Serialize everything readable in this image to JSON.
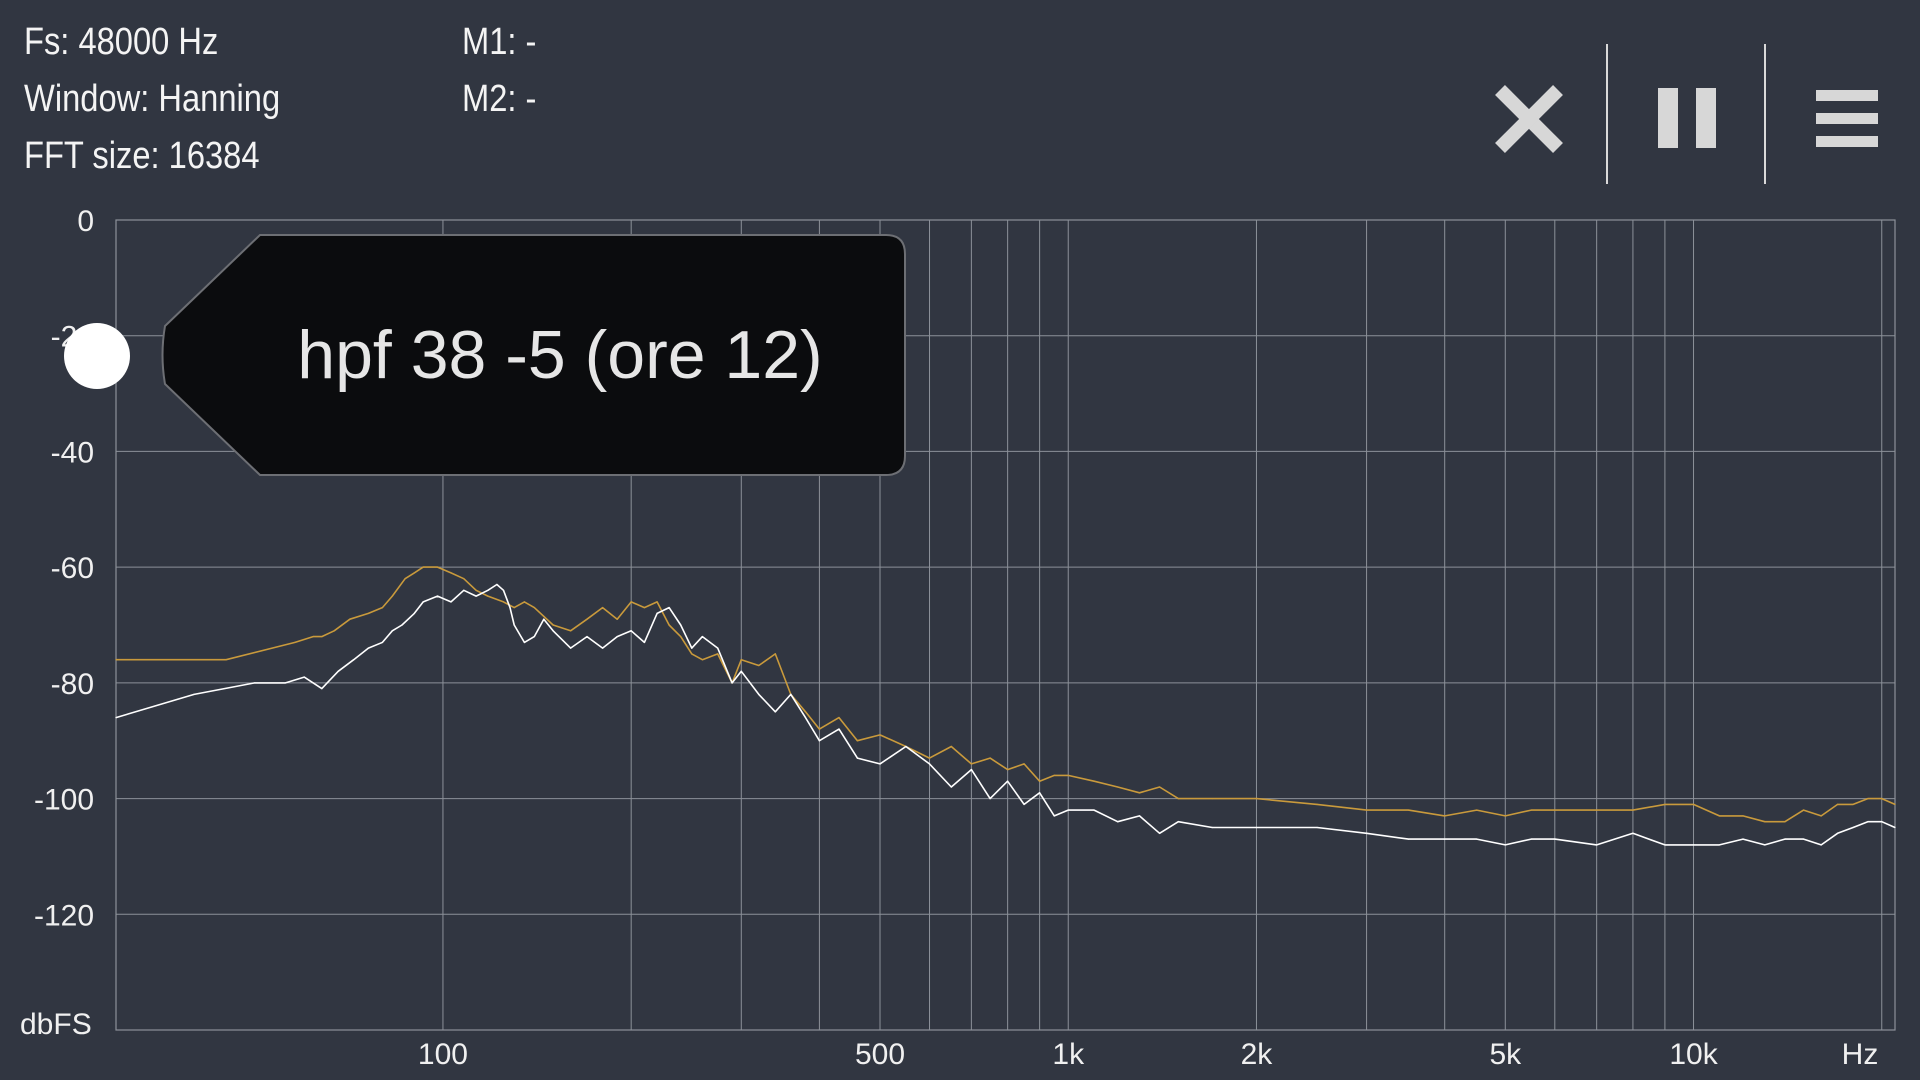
{
  "info": {
    "fs": "Fs: 48000 Hz",
    "window": "Window: Hanning",
    "fft_size": "FFT size: 16384",
    "m1": "M1: -",
    "m2": "M2: -"
  },
  "toolbar": {
    "close_icon": "close-icon",
    "pause_icon": "pause-icon",
    "menu_icon": "menu-icon"
  },
  "tooltip": {
    "label": "hpf 38 -5 (ore 12)"
  },
  "colors": {
    "background": "#313641",
    "grid": "#8c9199",
    "trace_current": "#ffffff",
    "trace_peak": "#c99a3c",
    "tooltip_bg": "#0b0c0e"
  },
  "chart_data": {
    "type": "line",
    "xlabel": "Hz",
    "ylabel": "dbFS",
    "x_scale": "log",
    "xlim": [
      30,
      21000
    ],
    "ylim": [
      -140,
      0
    ],
    "x_ticks": [
      {
        "value": 100,
        "label": "100"
      },
      {
        "value": 500,
        "label": "500"
      },
      {
        "value": 1000,
        "label": "1k"
      },
      {
        "value": 2000,
        "label": "2k"
      },
      {
        "value": 5000,
        "label": "5k"
      },
      {
        "value": 10000,
        "label": "10k"
      }
    ],
    "x_unit_label": "Hz",
    "y_ticks": [
      0,
      -20,
      -40,
      -60,
      -80,
      -100,
      -120
    ],
    "x_grid": [
      100,
      200,
      300,
      400,
      500,
      600,
      700,
      800,
      900,
      1000,
      2000,
      3000,
      4000,
      5000,
      6000,
      7000,
      8000,
      9000,
      10000,
      20000
    ],
    "grid": true,
    "series": [
      {
        "color": "#c99a3c",
        "x": [
          30,
          45,
          58,
          62,
          64,
          67,
          71,
          76,
          80,
          83,
          87,
          90,
          93,
          98,
          103,
          108,
          113,
          118,
          125,
          130,
          135,
          140,
          150,
          160,
          170,
          180,
          190,
          200,
          210,
          220,
          230,
          240,
          250,
          260,
          275,
          290,
          300,
          320,
          340,
          360,
          380,
          400,
          430,
          460,
          500,
          550,
          600,
          650,
          700,
          750,
          800,
          850,
          900,
          950,
          1000,
          1100,
          1200,
          1300,
          1400,
          1500,
          1700,
          2000,
          2500,
          3000,
          3500,
          4000,
          4500,
          5000,
          5500,
          6000,
          7000,
          8000,
          9000,
          10000,
          11000,
          12000,
          13000,
          14000,
          15000,
          16000,
          17000,
          18000,
          19000,
          20000,
          21000
        ],
        "y": [
          -76,
          -76,
          -73,
          -72,
          -72,
          -71,
          -69,
          -68,
          -67,
          -65,
          -62,
          -61,
          -60,
          -60,
          -61,
          -62,
          -64,
          -65,
          -66,
          -67,
          -66,
          -67,
          -70,
          -71,
          -69,
          -67,
          -69,
          -66,
          -67,
          -66,
          -70,
          -72,
          -75,
          -76,
          -75,
          -80,
          -76,
          -77,
          -75,
          -82,
          -85,
          -88,
          -86,
          -90,
          -89,
          -91,
          -93,
          -91,
          -94,
          -93,
          -95,
          -94,
          -97,
          -96,
          -96,
          -97,
          -98,
          -99,
          -98,
          -100,
          -100,
          -100,
          -101,
          -102,
          -102,
          -103,
          -102,
          -103,
          -102,
          -102,
          -102,
          -102,
          -101,
          -101,
          -103,
          -103,
          -104,
          -104,
          -102,
          -103,
          -101,
          -101,
          -100,
          -100,
          -101
        ]
      },
      {
        "color": "#ffffff",
        "x": [
          30,
          40,
          50,
          56,
          60,
          64,
          68,
          72,
          76,
          80,
          83,
          86,
          90,
          93,
          98,
          103,
          108,
          113,
          118,
          122,
          125,
          128,
          130,
          135,
          140,
          145,
          150,
          160,
          170,
          180,
          190,
          200,
          210,
          220,
          230,
          240,
          250,
          260,
          275,
          290,
          300,
          320,
          340,
          360,
          380,
          400,
          430,
          460,
          500,
          550,
          600,
          650,
          700,
          750,
          800,
          850,
          900,
          950,
          1000,
          1100,
          1200,
          1300,
          1400,
          1500,
          1700,
          2000,
          2500,
          3000,
          3500,
          4000,
          4500,
          5000,
          5500,
          6000,
          7000,
          8000,
          9000,
          10000,
          11000,
          12000,
          13000,
          14000,
          15000,
          16000,
          17000,
          18000,
          19000,
          20000,
          21000
        ],
        "y": [
          -86,
          -82,
          -80,
          -80,
          -79,
          -81,
          -78,
          -76,
          -74,
          -73,
          -71,
          -70,
          -68,
          -66,
          -65,
          -66,
          -64,
          -65,
          -64,
          -63,
          -64,
          -67,
          -70,
          -73,
          -72,
          -69,
          -71,
          -74,
          -72,
          -74,
          -72,
          -71,
          -73,
          -68,
          -67,
          -70,
          -74,
          -72,
          -74,
          -80,
          -78,
          -82,
          -85,
          -82,
          -86,
          -90,
          -88,
          -93,
          -94,
          -91,
          -94,
          -98,
          -95,
          -100,
          -97,
          -101,
          -99,
          -103,
          -102,
          -102,
          -104,
          -103,
          -106,
          -104,
          -105,
          -105,
          -105,
          -106,
          -107,
          -107,
          -107,
          -108,
          -107,
          -107,
          -108,
          -106,
          -108,
          -108,
          -108,
          -107,
          -108,
          -107,
          -107,
          -108,
          -106,
          -105,
          -104,
          -104,
          -105
        ]
      }
    ]
  }
}
